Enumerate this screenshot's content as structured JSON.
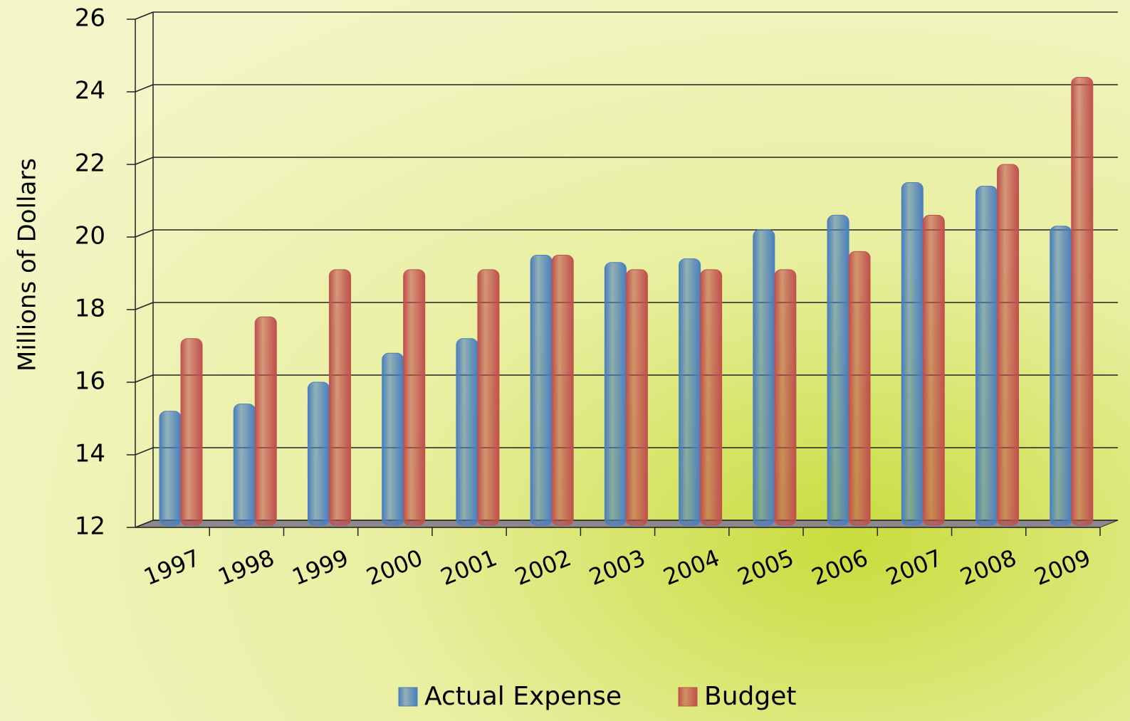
{
  "chart_data": {
    "type": "bar",
    "y_label": "Millions of Dollars",
    "categories": [
      "1997",
      "1998",
      "1999",
      "2000",
      "2001",
      "2002",
      "2003",
      "2004",
      "2005",
      "2006",
      "2007",
      "2008",
      "2009"
    ],
    "series": [
      {
        "name": "Actual Expense",
        "color": "#4a7ebf",
        "values": [
          15.2,
          15.4,
          16.0,
          16.8,
          17.2,
          19.5,
          19.3,
          19.4,
          20.2,
          20.6,
          21.5,
          21.4,
          20.3
        ]
      },
      {
        "name": "Budget",
        "color": "#c0504d",
        "values": [
          17.2,
          17.8,
          19.1,
          19.1,
          19.1,
          19.5,
          19.1,
          19.1,
          19.1,
          19.6,
          20.6,
          22.0,
          24.4
        ]
      }
    ],
    "ylim": [
      12,
      26
    ],
    "yticks": [
      12,
      14,
      16,
      18,
      20,
      22,
      24,
      26
    ],
    "grid": true,
    "legend": "bottom"
  }
}
